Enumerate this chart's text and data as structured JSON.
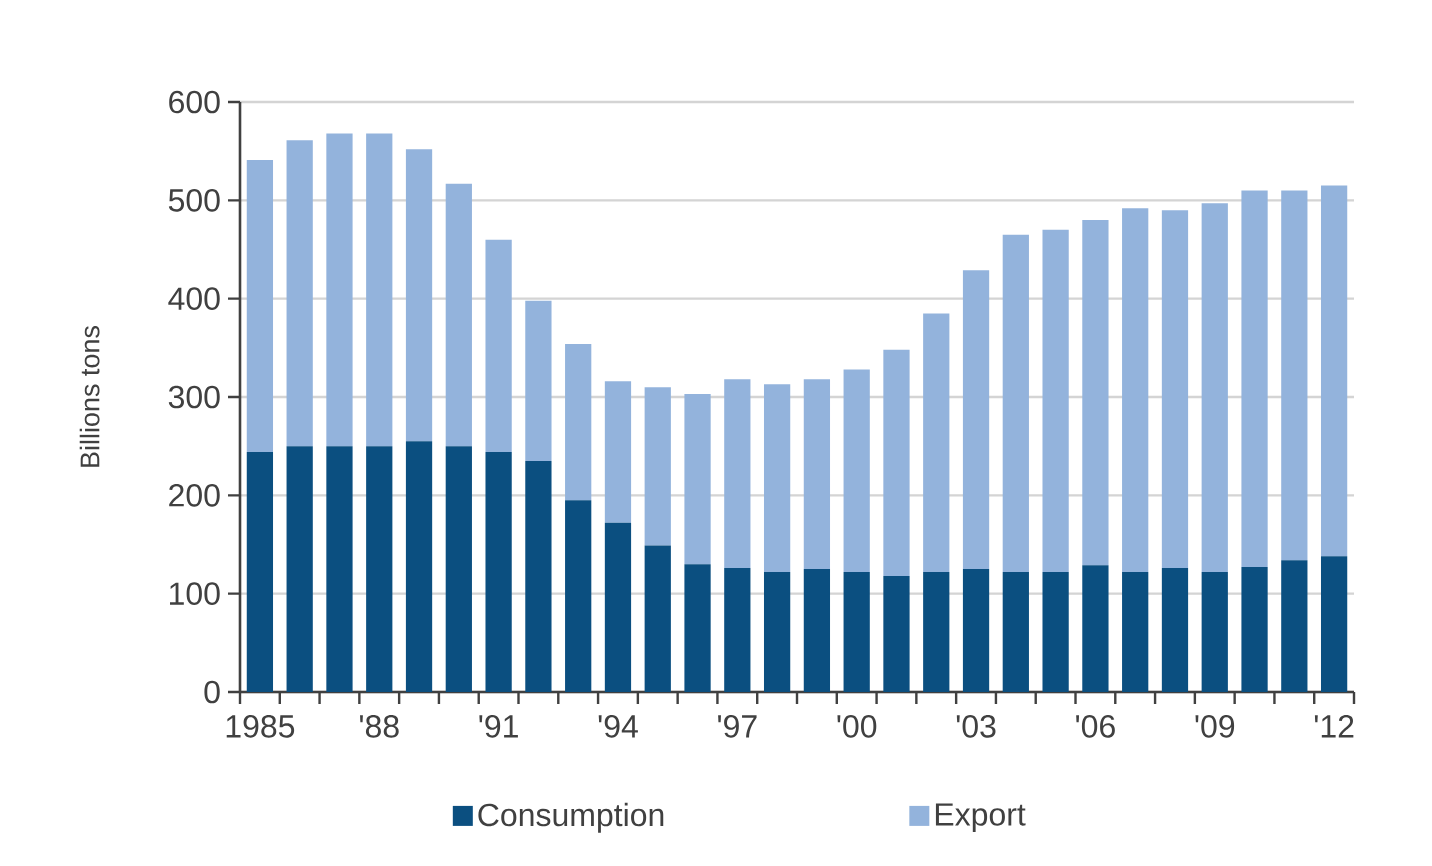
{
  "chart_data": {
    "type": "bar",
    "stacked": true,
    "ylabel": "Billions tons",
    "categories": [
      "1985",
      null,
      null,
      "'88",
      null,
      null,
      "'91",
      null,
      null,
      "'94",
      null,
      null,
      "'97",
      null,
      null,
      "'00",
      null,
      null,
      "'03",
      null,
      null,
      "'06",
      null,
      null,
      "'09",
      null,
      null,
      "'12"
    ],
    "series": [
      {
        "name": "Consumption",
        "color": "#0b4f80",
        "values": [
          244,
          250,
          250,
          250,
          255,
          250,
          244,
          235,
          195,
          172,
          149,
          130,
          126,
          122,
          125,
          122,
          118,
          122,
          125,
          122,
          122,
          129,
          122,
          126,
          122,
          127,
          134,
          138
        ]
      },
      {
        "name": "Export",
        "color": "#93b3dc",
        "values": [
          297,
          311,
          318,
          318,
          297,
          267,
          216,
          163,
          159,
          144,
          161,
          173,
          192,
          191,
          193,
          206,
          230,
          263,
          304,
          343,
          348,
          351,
          370,
          364,
          375,
          383,
          376,
          377
        ]
      }
    ],
    "ylim": [
      0,
      600
    ],
    "yticks": [
      0,
      100,
      200,
      300,
      400,
      500,
      600
    ],
    "grid": "y",
    "legend": "bottom"
  }
}
